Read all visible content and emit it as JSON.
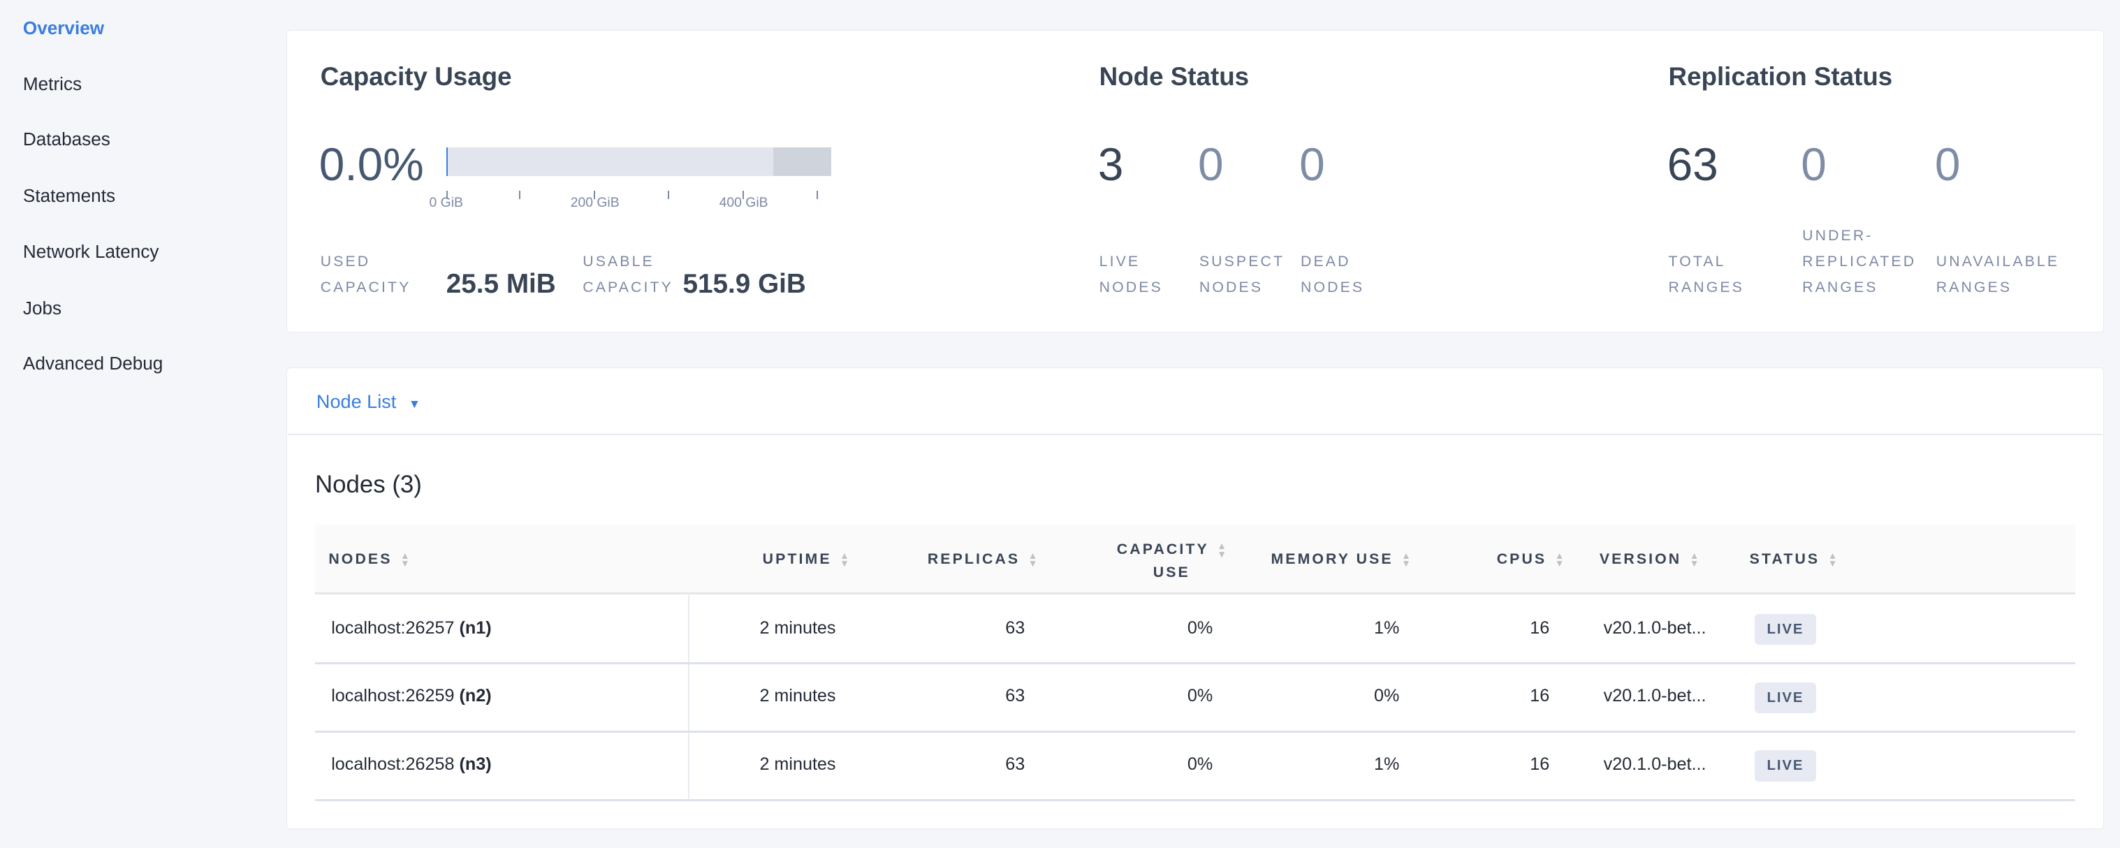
{
  "sidebar": {
    "items": [
      {
        "label": "Overview",
        "active": true
      },
      {
        "label": "Metrics"
      },
      {
        "label": "Databases"
      },
      {
        "label": "Statements"
      },
      {
        "label": "Network Latency"
      },
      {
        "label": "Jobs"
      },
      {
        "label": "Advanced Debug"
      }
    ]
  },
  "capacity": {
    "title": "Capacity Usage",
    "percent": "0.0%",
    "used_fraction": 5e-05,
    "bar_max_gib": 515.9,
    "ticks": [
      "0 GiB",
      "200 GiB",
      "400 GiB"
    ],
    "used_label_1": "USED",
    "used_label_2": "CAPACITY",
    "used_value": "25.5 MiB",
    "usable_label_1": "USABLE",
    "usable_label_2": "CAPACITY",
    "usable_value": "515.9 GiB"
  },
  "node_status": {
    "title": "Node Status",
    "live": "3",
    "live_l1": "LIVE",
    "live_l2": "NODES",
    "suspect": "0",
    "suspect_l1": "SUSPECT",
    "suspect_l2": "NODES",
    "dead": "0",
    "dead_l1": "DEAD",
    "dead_l2": "NODES"
  },
  "replication": {
    "title": "Replication Status",
    "total": "63",
    "total_l1": "TOTAL",
    "total_l2": "RANGES",
    "under": "0",
    "under_l1": "UNDER-",
    "under_l2": "REPLICATED",
    "under_l3": "RANGES",
    "unavail": "0",
    "unavail_l1": "UNAVAILABLE",
    "unavail_l2": "RANGES"
  },
  "node_list": {
    "dropdown": "Node List",
    "heading": "Nodes (3)",
    "columns": {
      "nodes": "NODES",
      "uptime": "UPTIME",
      "replicas": "REPLICAS",
      "capacity_1": "CAPACITY",
      "capacity_2": "USE",
      "memory": "MEMORY USE",
      "cpus": "CPUS",
      "version": "VERSION",
      "status": "STATUS"
    },
    "rows": [
      {
        "addr": "localhost:26257",
        "id": "(n1)",
        "uptime": "2 minutes",
        "replicas": "63",
        "capacity": "0%",
        "memory": "1%",
        "cpus": "16",
        "version": "v20.1.0-bet...",
        "status": "LIVE"
      },
      {
        "addr": "localhost:26259",
        "id": "(n2)",
        "uptime": "2 minutes",
        "replicas": "63",
        "capacity": "0%",
        "memory": "0%",
        "cpus": "16",
        "version": "v20.1.0-bet...",
        "status": "LIVE"
      },
      {
        "addr": "localhost:26258",
        "id": "(n3)",
        "uptime": "2 minutes",
        "replicas": "63",
        "capacity": "0%",
        "memory": "1%",
        "cpus": "16",
        "version": "v20.1.0-bet...",
        "status": "LIVE"
      }
    ]
  },
  "colors": {
    "accent": "#3a7de1",
    "text": "#394455",
    "muted": "#7e89a3"
  }
}
